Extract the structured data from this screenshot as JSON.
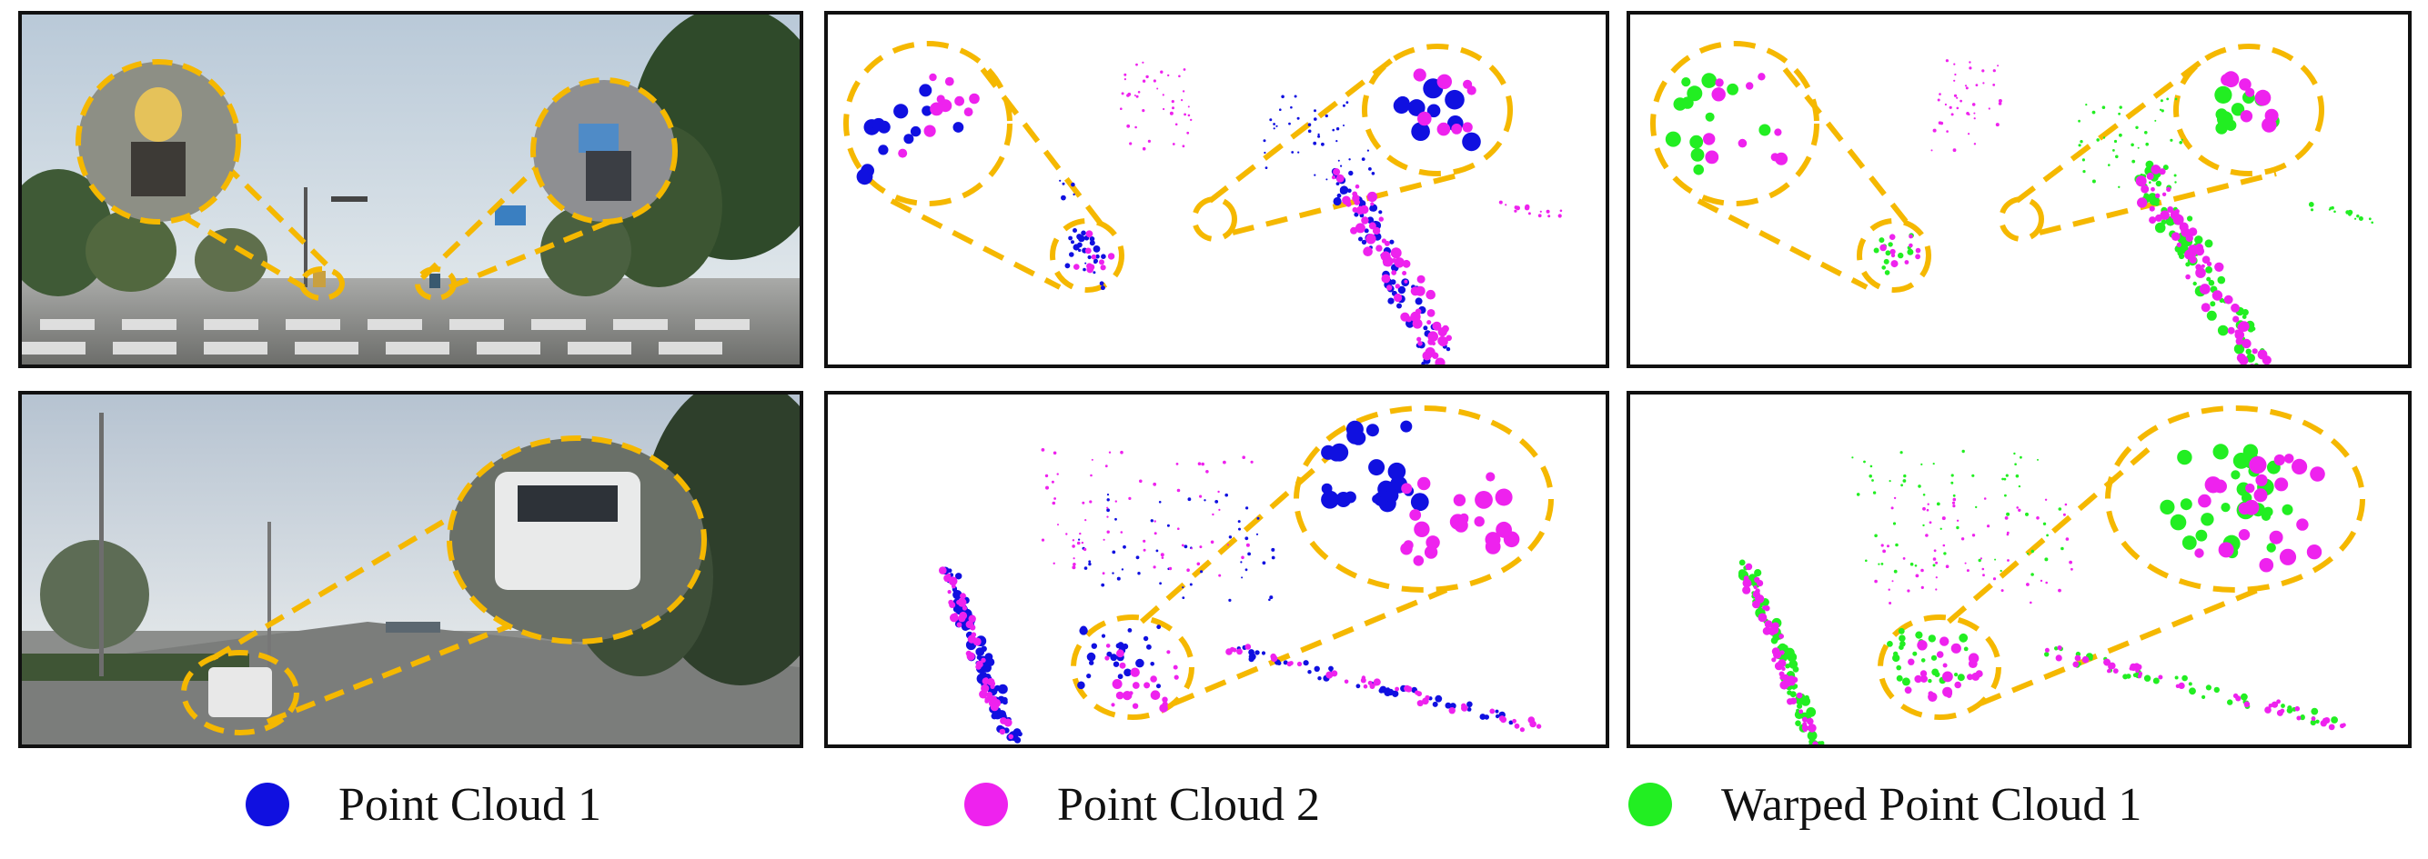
{
  "colors": {
    "point_cloud_1": "#1010e0",
    "point_cloud_2": "#ee22ee",
    "warped_point_cloud_1": "#22ee22",
    "highlight": "#f5b800",
    "border": "#111111"
  },
  "legend": {
    "items": [
      {
        "label": "Point Cloud 1",
        "color": "#1010e0"
      },
      {
        "label": "Point Cloud 2",
        "color": "#ee22ee"
      },
      {
        "label": "Warped Point Cloud 1",
        "color": "#22ee22"
      }
    ]
  },
  "rows": [
    {
      "scene": "street-crossing-with-cyclists",
      "panels": [
        "camera-image",
        "point-cloud-1-and-2",
        "warped-point-cloud-1-and-2"
      ]
    },
    {
      "scene": "road-with-white-suv",
      "panels": [
        "camera-image",
        "point-cloud-1-and-2",
        "warped-point-cloud-1-and-2"
      ]
    }
  ]
}
